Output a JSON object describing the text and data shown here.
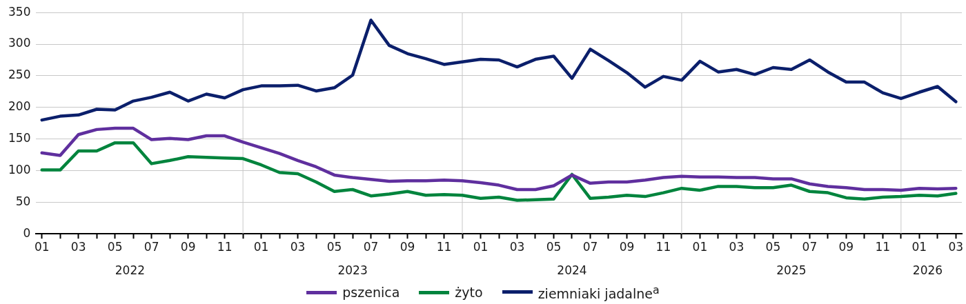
{
  "chart_data": {
    "type": "line",
    "x": [
      "2022-01",
      "2022-02",
      "2022-03",
      "2022-04",
      "2022-05",
      "2022-06",
      "2022-07",
      "2022-08",
      "2022-09",
      "2022-10",
      "2022-11",
      "2022-12",
      "2023-01",
      "2023-02",
      "2023-03",
      "2023-04",
      "2023-05",
      "2023-06",
      "2023-07",
      "2023-08",
      "2023-09",
      "2023-10",
      "2023-11",
      "2023-12",
      "2024-01",
      "2024-02",
      "2024-03",
      "2024-04",
      "2024-05",
      "2024-06",
      "2024-07",
      "2024-08",
      "2024-09",
      "2024-10",
      "2024-11",
      "2024-12",
      "2025-01",
      "2025-02",
      "2025-03",
      "2025-04",
      "2025-05",
      "2025-06",
      "2025-07",
      "2025-08",
      "2025-09",
      "2025-10",
      "2025-11",
      "2025-12",
      "2026-01",
      "2026-02",
      "2026-03"
    ],
    "series": [
      {
        "name": "pszenica",
        "color": "#5f2f9e",
        "values": [
          128,
          124,
          157,
          165,
          167,
          167,
          149,
          151,
          149,
          155,
          155,
          145,
          136,
          127,
          116,
          106,
          93,
          89,
          86,
          83,
          84,
          84,
          85,
          84,
          81,
          77,
          70,
          70,
          76,
          93,
          80,
          82,
          82,
          85,
          89,
          91,
          90,
          90,
          89,
          89,
          87,
          87,
          79,
          75,
          73,
          70,
          70,
          69,
          72,
          71,
          72
        ]
      },
      {
        "name": "żyto",
        "color": "#00843d",
        "values": [
          101,
          101,
          131,
          131,
          144,
          144,
          111,
          116,
          122,
          121,
          120,
          119,
          109,
          97,
          95,
          82,
          67,
          70,
          60,
          63,
          67,
          61,
          62,
          61,
          56,
          58,
          53,
          54,
          55,
          94,
          56,
          58,
          61,
          59,
          65,
          72,
          69,
          75,
          75,
          73,
          73,
          77,
          67,
          65,
          57,
          55,
          58,
          59,
          61,
          60,
          64
        ]
      },
      {
        "name": "ziemniaki jadalne$^{a}$",
        "color": "#0b1f6b",
        "values": [
          180,
          186,
          188,
          197,
          196,
          210,
          216,
          224,
          210,
          221,
          215,
          228,
          234,
          234,
          235,
          226,
          231,
          251,
          338,
          298,
          285,
          277,
          268,
          272,
          276,
          275,
          264,
          276,
          281,
          246,
          292,
          274,
          255,
          232,
          249,
          243,
          273,
          256,
          260,
          252,
          263,
          260,
          275,
          256,
          240,
          240,
          223,
          214,
          224,
          233,
          209
        ]
      }
    ],
    "xlim": [
      "2021-12-22",
      "2026-03-11"
    ],
    "xticks": [
      {
        "value": "2022-01",
        "label": "01"
      },
      {
        "value": "2022-02",
        "label": null
      },
      {
        "value": "2022-03",
        "label": "03"
      },
      {
        "value": "2022-04",
        "label": null
      },
      {
        "value": "2022-05",
        "label": "05"
      },
      {
        "value": "2022-06",
        "label": null
      },
      {
        "value": "2022-07",
        "label": "07"
      },
      {
        "value": "2022-08",
        "label": null
      },
      {
        "value": "2022-09",
        "label": "09"
      },
      {
        "value": "2022-10",
        "label": null
      },
      {
        "value": "2022-11",
        "label": "11"
      },
      {
        "value": "2022-12",
        "label": null
      },
      {
        "value": "2023-01",
        "label": "01"
      },
      {
        "value": "2023-02",
        "label": null
      },
      {
        "value": "2023-03",
        "label": "03"
      },
      {
        "value": "2023-04",
        "label": null
      },
      {
        "value": "2023-05",
        "label": "05"
      },
      {
        "value": "2023-06",
        "label": null
      },
      {
        "value": "2023-07",
        "label": "07"
      },
      {
        "value": "2023-08",
        "label": null
      },
      {
        "value": "2023-09",
        "label": "09"
      },
      {
        "value": "2023-10",
        "label": null
      },
      {
        "value": "2023-11",
        "label": "11"
      },
      {
        "value": "2023-12",
        "label": null
      },
      {
        "value": "2024-01",
        "label": "01"
      },
      {
        "value": "2024-02",
        "label": null
      },
      {
        "value": "2024-03",
        "label": "03"
      },
      {
        "value": "2024-04",
        "label": null
      },
      {
        "value": "2024-05",
        "label": "05"
      },
      {
        "value": "2024-06",
        "label": null
      },
      {
        "value": "2024-07",
        "label": "07"
      },
      {
        "value": "2024-08",
        "label": null
      },
      {
        "value": "2024-09",
        "label": "09"
      },
      {
        "value": "2024-10",
        "label": null
      },
      {
        "value": "2024-11",
        "label": "11"
      },
      {
        "value": "2024-12",
        "label": null
      },
      {
        "value": "2025-01",
        "label": "01"
      },
      {
        "value": "2025-02",
        "label": null
      },
      {
        "value": "2025-03",
        "label": "03"
      },
      {
        "value": "2025-04",
        "label": null
      },
      {
        "value": "2025-05",
        "label": "05"
      },
      {
        "value": "2025-06",
        "label": null
      },
      {
        "value": "2025-07",
        "label": "07"
      },
      {
        "value": "2025-08",
        "label": null
      },
      {
        "value": "2025-09",
        "label": "09"
      },
      {
        "value": "2025-10",
        "label": null
      },
      {
        "value": "2025-11",
        "label": "11"
      },
      {
        "value": "2025-12",
        "label": null
      },
      {
        "value": "2026-01",
        "label": "01"
      },
      {
        "value": "2026-02",
        "label": null
      },
      {
        "value": "2026-03",
        "label": "03"
      }
    ],
    "x2lim": [
      "2021-12-22",
      "2026-03-11"
    ],
    "x2ticks": [
      {
        "value": "2022-05-26",
        "label": "2022"
      },
      {
        "value": "2023-06",
        "label": "2023"
      },
      {
        "value": "2024-06",
        "label": "2024"
      },
      {
        "value": "2025-06",
        "label": "2025"
      },
      {
        "value": "2026-01-15",
        "label": "2026"
      }
    ],
    "ylim": [
      0,
      350
    ],
    "yticks": [
      0,
      50,
      100,
      150,
      200,
      250,
      300,
      350
    ],
    "grid": "y",
    "ref_lines": [
      {
        "axis": "x",
        "value": "2022-12",
        "color": "#c8c8c8"
      },
      {
        "axis": "x",
        "value": "2023-12",
        "color": "#c8c8c8"
      },
      {
        "axis": "x",
        "value": "2024-12",
        "color": "#c8c8c8"
      },
      {
        "axis": "x",
        "value": "2025-12",
        "color": "#c8c8c8"
      }
    ],
    "legend": "bottom",
    "marker": "none",
    "line_style": "solid"
  }
}
